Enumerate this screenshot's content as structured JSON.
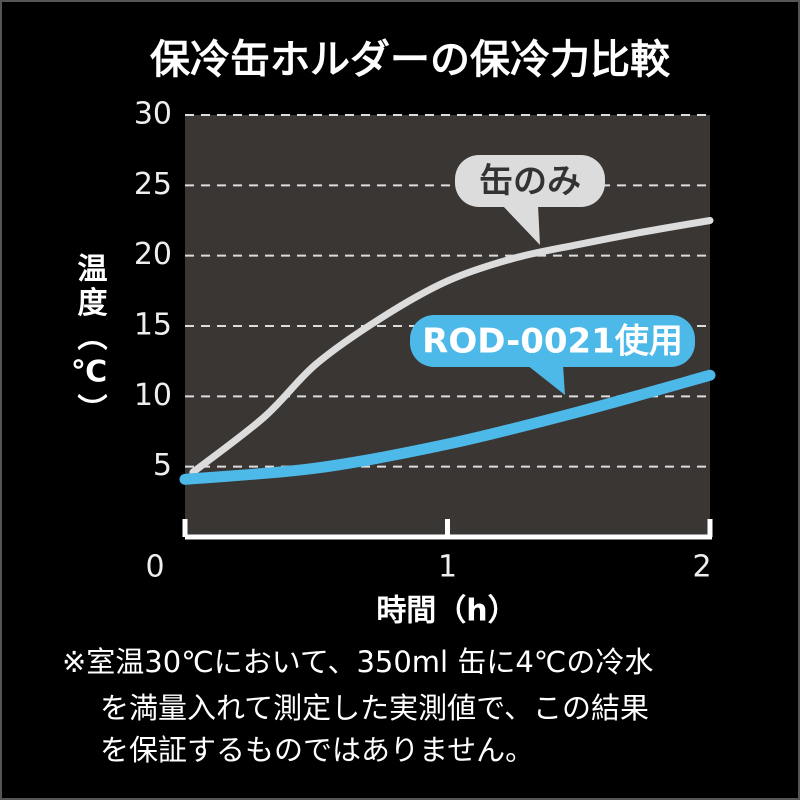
{
  "chart_data": {
    "type": "line",
    "title": "保冷缶ホルダーの保冷力比較",
    "y_label": "温度（℃）",
    "x_label": "時間（h）",
    "xlim": [
      0,
      2
    ],
    "xticks": [
      0,
      1,
      2
    ],
    "ylim": [
      0,
      30
    ],
    "yticks": [
      5,
      10,
      15,
      20,
      25,
      30
    ],
    "grid": true,
    "series": [
      {
        "name": "缶のみ",
        "color": "#dcdcdc",
        "x": [
          0.03,
          0.3,
          0.5,
          0.75,
          1,
          1.25,
          1.5,
          1.75,
          2
        ],
        "values": [
          4.6,
          8.5,
          12.3,
          15.6,
          18.2,
          19.8,
          20.8,
          21.7,
          22.5
        ]
      },
      {
        "name": "ROD-0021使用",
        "color": "#4db9e8",
        "x": [
          0,
          0.5,
          1,
          1.5,
          2
        ],
        "values": [
          4.1,
          4.9,
          6.6,
          8.9,
          11.5
        ]
      }
    ],
    "note": [
      "※室温30℃において、350ml 缶に4℃の冷水",
      "を満量入れて測定した実測値で、この結果",
      "を保証するものではありません。"
    ]
  }
}
